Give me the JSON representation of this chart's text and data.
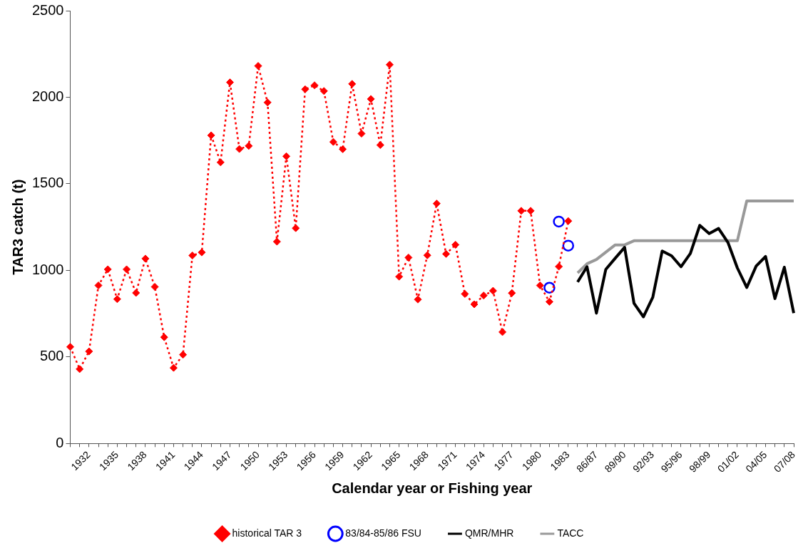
{
  "chart_data": {
    "type": "line",
    "xlabel": "Calendar year or Fishing year",
    "ylabel": "TAR3 catch (t)",
    "categories": [
      null,
      null,
      "1932",
      null,
      null,
      "1935",
      null,
      null,
      "1938",
      null,
      null,
      "1941",
      null,
      null,
      "1944",
      null,
      null,
      "1947",
      null,
      null,
      "1950",
      null,
      null,
      "1953",
      null,
      null,
      "1956",
      null,
      null,
      "1959",
      null,
      null,
      "1962",
      null,
      null,
      "1965",
      null,
      null,
      "1968",
      null,
      null,
      "1971",
      null,
      null,
      "1974",
      null,
      null,
      "1977",
      null,
      null,
      "1980",
      null,
      null,
      "1983",
      null,
      null,
      "86/87",
      null,
      null,
      "89/90",
      null,
      null,
      "92/93",
      null,
      null,
      "95/96",
      null,
      null,
      "98/99",
      null,
      null,
      "01/02",
      null,
      null,
      "04/05",
      null,
      null,
      "07/08"
    ],
    "series": [
      {
        "name": "historical TAR 3",
        "color": "#ff0000",
        "marker": "diamond",
        "line_style": "dotted",
        "values": [
          558,
          430,
          532,
          913,
          1006,
          834,
          1006,
          870,
          1068,
          905,
          614,
          437,
          513,
          1086,
          1104,
          1780,
          1624,
          2086,
          1701,
          1719,
          2181,
          1970,
          1166,
          1659,
          1244,
          2046,
          2069,
          2036,
          1742,
          1700,
          2077,
          1790,
          1990,
          1724,
          2188,
          964,
          1074,
          832,
          1087,
          1386,
          1095,
          1148,
          864,
          804,
          855,
          882,
          644,
          869,
          1344,
          1344,
          913,
          819,
          1022,
          1285,
          null,
          null,
          null,
          null,
          null,
          null,
          null,
          null,
          null,
          null,
          null,
          null,
          null,
          null,
          null,
          null,
          null,
          null,
          null,
          null,
          null,
          null,
          null,
          null
        ]
      },
      {
        "name": "83/84-85/86 FSU",
        "type": "scatter",
        "color": "#0000ff",
        "marker": "circle",
        "values": [
          null,
          null,
          null,
          null,
          null,
          null,
          null,
          null,
          null,
          null,
          null,
          null,
          null,
          null,
          null,
          null,
          null,
          null,
          null,
          null,
          null,
          null,
          null,
          null,
          null,
          null,
          null,
          null,
          null,
          null,
          null,
          null,
          null,
          null,
          null,
          null,
          null,
          null,
          null,
          null,
          null,
          null,
          null,
          null,
          null,
          null,
          null,
          null,
          null,
          null,
          null,
          900,
          1282,
          1143,
          null,
          null,
          null,
          null,
          null,
          null,
          null,
          null,
          null,
          null,
          null,
          null,
          null,
          null,
          null,
          null,
          null,
          null,
          null,
          null,
          null,
          null,
          null,
          null
        ]
      },
      {
        "name": "QMR/MHR",
        "color": "#000000",
        "marker": "none",
        "line_style": "solid",
        "values": [
          null,
          null,
          null,
          null,
          null,
          null,
          null,
          null,
          null,
          null,
          null,
          null,
          null,
          null,
          null,
          null,
          null,
          null,
          null,
          null,
          null,
          null,
          null,
          null,
          null,
          null,
          null,
          null,
          null,
          null,
          null,
          null,
          null,
          null,
          null,
          null,
          null,
          null,
          null,
          null,
          null,
          null,
          null,
          null,
          null,
          null,
          null,
          null,
          null,
          null,
          null,
          null,
          null,
          null,
          933,
          1021,
          753,
          1006,
          1070,
          1133,
          810,
          732,
          845,
          1112,
          1084,
          1021,
          1098,
          1260,
          1213,
          1242,
          1161,
          1014,
          901,
          1025,
          1080,
          837,
          1018,
          753
        ]
      },
      {
        "name": "TACC",
        "color": "#999999",
        "marker": "none",
        "line_style": "solid",
        "values": [
          null,
          null,
          null,
          null,
          null,
          null,
          null,
          null,
          null,
          null,
          null,
          null,
          null,
          null,
          null,
          null,
          null,
          null,
          null,
          null,
          null,
          null,
          null,
          null,
          null,
          null,
          null,
          null,
          null,
          null,
          null,
          null,
          null,
          null,
          null,
          null,
          null,
          null,
          null,
          null,
          null,
          null,
          null,
          null,
          null,
          null,
          null,
          null,
          null,
          null,
          null,
          null,
          null,
          null,
          985,
          1038,
          1063,
          1105,
          1147,
          1147,
          1171,
          1171,
          1171,
          1171,
          1171,
          1171,
          1171,
          1171,
          1171,
          1171,
          1171,
          1171,
          1401,
          1401,
          1401,
          1401,
          1401,
          1401
        ]
      }
    ],
    "ylim": [
      0,
      2500
    ],
    "yticks": [
      0,
      500,
      1000,
      1500,
      2000,
      2500
    ],
    "grid": false,
    "legend": "bottom"
  }
}
